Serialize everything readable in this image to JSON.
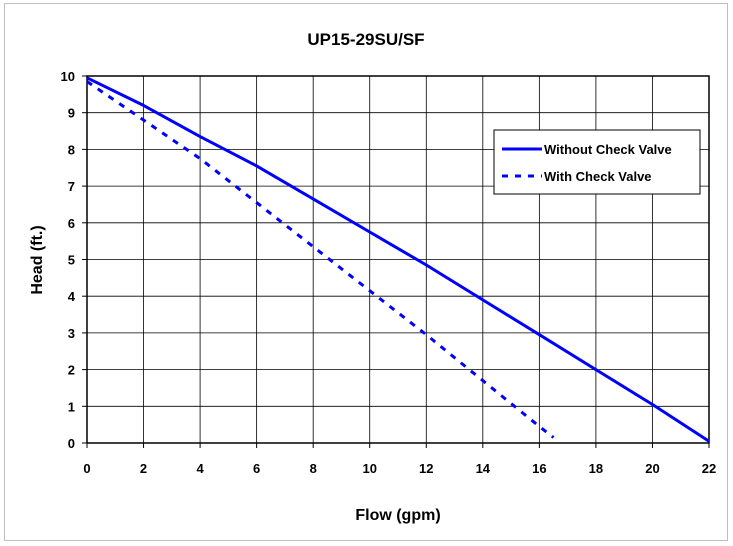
{
  "chart_data": {
    "type": "line",
    "title": "UP15-29SU/SF",
    "xlabel": "Flow (gpm)",
    "ylabel": "Head (ft.)",
    "xlim": [
      0,
      22
    ],
    "ylim": [
      0,
      10
    ],
    "xticks": [
      "0",
      "2",
      "4",
      "6",
      "8",
      "10",
      "12",
      "14",
      "16",
      "18",
      "20",
      "22"
    ],
    "yticks": [
      "0",
      "1",
      "2",
      "3",
      "4",
      "5",
      "6",
      "7",
      "8",
      "9",
      "10"
    ],
    "grid": true,
    "legend_position": "right",
    "series": [
      {
        "name": "Without Check Valve",
        "style": "solid",
        "color": "#0000ff",
        "x": [
          0,
          2,
          4,
          6,
          8,
          10,
          12,
          14,
          16,
          18,
          20,
          22
        ],
        "y": [
          9.95,
          9.2,
          8.35,
          7.55,
          6.65,
          5.75,
          4.85,
          3.9,
          2.95,
          2.0,
          1.05,
          0.05
        ]
      },
      {
        "name": "With Check Valve",
        "style": "dashed",
        "color": "#0000ff",
        "x": [
          0,
          2,
          4,
          6,
          8,
          10,
          12,
          14,
          16,
          16.5
        ],
        "y": [
          9.85,
          8.8,
          7.75,
          6.55,
          5.35,
          4.15,
          2.95,
          1.7,
          0.45,
          0.15
        ]
      }
    ]
  }
}
